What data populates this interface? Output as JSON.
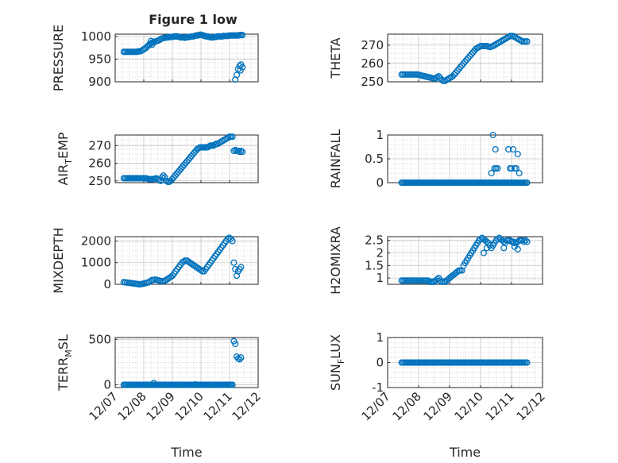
{
  "figure": {
    "title": "Figure 1 low",
    "marker_color": "#0072BD"
  },
  "chart_data": [
    {
      "type": "scatter",
      "name": "pressure",
      "title": "Figure 1 low",
      "ylabel": "PRESSURE",
      "xlabel": "",
      "ylim": [
        900,
        1005
      ],
      "yticks": [
        900,
        950,
        1000
      ],
      "ytick_labels": [
        "900",
        "950",
        "1000"
      ],
      "xlim": [
        "12/07",
        "12/12"
      ],
      "x_tick_labels_shown": false,
      "grid": true,
      "x_start": 7.3,
      "x_end": 11.45,
      "y": [
        966,
        966,
        966,
        966,
        966,
        966,
        966,
        966,
        966,
        966,
        967,
        967,
        968,
        970,
        972,
        974,
        977,
        980,
        982,
        985,
        987,
        988,
        989,
        990,
        991,
        993,
        995,
        996,
        997,
        997,
        998,
        998,
        999,
        999,
        999,
        1000,
        1000,
        1000,
        999,
        998,
        998,
        998,
        997,
        998,
        998,
        999,
        999,
        1000,
        1000,
        1001,
        1002,
        1002,
        1003,
        1004,
        1003,
        1002,
        1001,
        1000,
        1000,
        999,
        998,
        998,
        998,
        999,
        999,
        1000,
        1000,
        1000,
        1000,
        1001,
        1001,
        1001,
        1001,
        1002,
        1002,
        1002,
        1002,
        1002,
        1002,
        1002,
        1003,
        1003,
        1003
      ],
      "extra": [
        [
          8.2,
          983
        ],
        [
          8.25,
          990
        ],
        [
          8.3,
          982
        ],
        [
          11.2,
          905
        ],
        [
          11.25,
          915
        ],
        [
          11.3,
          928
        ],
        [
          11.35,
          935
        ],
        [
          11.4,
          938
        ],
        [
          11.45,
          932
        ],
        [
          11.38,
          925
        ]
      ]
    },
    {
      "type": "scatter",
      "name": "theta",
      "ylabel": "THETA",
      "xlabel": "",
      "ylim": [
        250,
        276
      ],
      "yticks": [
        250,
        260,
        270
      ],
      "ytick_labels": [
        "250",
        "260",
        "270"
      ],
      "xlim": [
        "12/07",
        "12/12"
      ],
      "x_tick_labels_shown": false,
      "grid": true,
      "x_start": 7.45,
      "x_end": 11.5,
      "y": [
        254,
        254,
        254,
        254,
        254,
        254,
        254,
        254,
        254,
        254,
        254,
        253.8,
        253.6,
        253.4,
        253.2,
        253,
        252.8,
        252.6,
        252.4,
        252.2,
        252,
        251.8,
        252,
        252.5,
        253,
        252,
        251,
        250.5,
        250.5,
        251,
        251.5,
        252,
        252.5,
        253,
        254,
        255,
        256,
        257,
        258,
        259,
        260,
        261,
        262,
        263,
        264,
        265,
        266,
        267,
        268,
        268.5,
        269,
        269.5,
        269.5,
        269.5,
        269.5,
        269.5,
        269.2,
        269,
        269.2,
        269.5,
        270,
        270.5,
        271,
        271.5,
        272,
        272.5,
        273,
        273.5,
        274,
        274.5,
        275,
        275,
        275,
        274.5,
        274,
        273.5,
        273,
        272.5,
        272,
        272,
        272,
        272
      ]
    },
    {
      "type": "scatter",
      "name": "air_temp",
      "ylabel": "AIR_TEMP",
      "ylabel_main": "AIR",
      "ylabel_sub": "T",
      "ylabel_rest": "EMP",
      "xlabel": "",
      "ylim": [
        249,
        276
      ],
      "yticks": [
        250,
        260,
        270
      ],
      "ytick_labels": [
        "250",
        "260",
        "270"
      ],
      "xlim": [
        "12/07",
        "12/12"
      ],
      "x_tick_labels_shown": false,
      "grid": true,
      "x_start": 7.3,
      "x_end": 11.1,
      "y": [
        251.5,
        251.5,
        251.5,
        251.5,
        251.5,
        251.5,
        251.5,
        251.5,
        251.5,
        251.5,
        251.5,
        251.5,
        251.5,
        251.5,
        251.5,
        251.5,
        251.3,
        251,
        251,
        251,
        251,
        251.2,
        251.5,
        251,
        250.5,
        250,
        252,
        253,
        252,
        250,
        249.5,
        249.5,
        250,
        251,
        252,
        253,
        254,
        255,
        256,
        257,
        258,
        259,
        260,
        261,
        262,
        263,
        264,
        265,
        266,
        267,
        268,
        268.5,
        269,
        269,
        269,
        269,
        269,
        269,
        269.5,
        270,
        270,
        270,
        270.5,
        271,
        271,
        271.5,
        272,
        272.5,
        273,
        273.5,
        274,
        274.5,
        275,
        275,
        275
      ],
      "extra": [
        [
          11.15,
          267
        ],
        [
          11.2,
          267.5
        ],
        [
          11.25,
          267
        ],
        [
          11.3,
          267
        ],
        [
          11.35,
          266.5
        ],
        [
          11.4,
          267
        ],
        [
          11.45,
          266.5
        ]
      ]
    },
    {
      "type": "scatter",
      "name": "rainfall",
      "ylabel": "RAINFALL",
      "xlabel": "",
      "ylim": [
        0,
        1
      ],
      "yticks": [
        0,
        0.5,
        1
      ],
      "ytick_labels": [
        "0",
        "0.5",
        "1"
      ],
      "xlim": [
        "12/07",
        "12/12"
      ],
      "x_tick_labels_shown": false,
      "grid": true,
      "x_start": 7.45,
      "x_end": 11.5,
      "baseline_points": 90,
      "extra": [
        [
          10.35,
          0.2
        ],
        [
          10.4,
          1.0
        ],
        [
          10.45,
          0.3
        ],
        [
          10.5,
          0.3
        ],
        [
          10.55,
          0.3
        ],
        [
          10.48,
          0.7
        ],
        [
          10.9,
          0.7
        ],
        [
          10.95,
          0.3
        ],
        [
          11.0,
          0.3
        ],
        [
          11.05,
          0.7
        ],
        [
          11.1,
          0.3
        ],
        [
          11.15,
          0.3
        ],
        [
          11.2,
          0.6
        ],
        [
          11.25,
          0.2
        ]
      ]
    },
    {
      "type": "scatter",
      "name": "mixdepth",
      "ylabel": "MIXDEPTH",
      "xlabel": "",
      "ylim": [
        0,
        2200
      ],
      "yticks": [
        0,
        1000,
        2000
      ],
      "ytick_labels": [
        "0",
        "1000",
        "2000"
      ],
      "xlim": [
        "12/07",
        "12/12"
      ],
      "x_tick_labels_shown": false,
      "grid": true,
      "x_start": 7.3,
      "x_end": 11.1,
      "y": [
        100,
        90,
        80,
        70,
        60,
        50,
        40,
        30,
        20,
        10,
        0,
        10,
        20,
        40,
        60,
        80,
        100,
        150,
        200,
        200,
        220,
        200,
        180,
        160,
        150,
        140,
        160,
        200,
        250,
        300,
        350,
        400,
        500,
        600,
        700,
        800,
        900,
        1000,
        1050,
        1100,
        1100,
        1050,
        1000,
        950,
        900,
        850,
        800,
        750,
        700,
        650,
        600,
        600,
        700,
        800,
        900,
        1000,
        1100,
        1200,
        1300,
        1400,
        1500,
        1600,
        1700,
        1800,
        1900,
        2000,
        2100,
        2150,
        2100,
        2000
      ],
      "extra": [
        [
          11.15,
          1000
        ],
        [
          11.2,
          700
        ],
        [
          11.25,
          400
        ],
        [
          11.3,
          600
        ],
        [
          11.35,
          700
        ],
        [
          11.4,
          800
        ]
      ]
    },
    {
      "type": "scatter",
      "name": "h2omixra",
      "ylabel": "H2OMIXRA",
      "xlabel": "",
      "ylim": [
        0.75,
        2.65
      ],
      "yticks": [
        1,
        1.5,
        2,
        2.5
      ],
      "ytick_labels": [
        "1",
        "1.5",
        "2",
        "2.5"
      ],
      "xlim": [
        "12/07",
        "12/12"
      ],
      "x_tick_labels_shown": false,
      "grid": true,
      "x_start": 7.45,
      "x_end": 11.5,
      "y": [
        0.9,
        0.9,
        0.9,
        0.9,
        0.9,
        0.9,
        0.9,
        0.9,
        0.9,
        0.9,
        0.9,
        0.9,
        0.9,
        0.9,
        0.9,
        0.9,
        0.9,
        0.9,
        0.85,
        0.85,
        0.85,
        0.85,
        0.9,
        0.95,
        1.0,
        0.9,
        0.85,
        0.85,
        0.85,
        0.9,
        0.95,
        1.0,
        1.05,
        1.1,
        1.15,
        1.2,
        1.25,
        1.3,
        1.3,
        1.3,
        1.5,
        1.6,
        1.7,
        1.8,
        1.9,
        2.0,
        2.1,
        2.2,
        2.3,
        2.4,
        2.5,
        2.55,
        2.6,
        2.55,
        2.5,
        2.45,
        2.4,
        2.3,
        2.2,
        2.3,
        2.4,
        2.5,
        2.55,
        2.6,
        2.55,
        2.5,
        2.45,
        2.4,
        2.5,
        2.5,
        2.5,
        2.45,
        2.45,
        2.4,
        2.4,
        2.45,
        2.5,
        2.5,
        2.5,
        2.45,
        2.5,
        2.45
      ],
      "extra": [
        [
          10.1,
          2.0
        ],
        [
          10.2,
          2.2
        ],
        [
          10.3,
          2.3
        ],
        [
          10.75,
          2.2
        ],
        [
          11.1,
          2.25
        ],
        [
          11.2,
          2.15
        ]
      ]
    },
    {
      "type": "scatter",
      "name": "terr_msl",
      "ylabel": "TERR_MSL",
      "ylabel_main": "TERR",
      "ylabel_sub": "M",
      "ylabel_rest": "SL",
      "xlabel": "Time",
      "ylim": [
        -30,
        520
      ],
      "yticks": [
        0,
        500
      ],
      "ytick_labels": [
        "0",
        "500"
      ],
      "xlim": [
        "12/07",
        "12/12"
      ],
      "xtick_labels": [
        "12/07",
        "12/08",
        "12/09",
        "12/10",
        "12/11",
        "12/12"
      ],
      "x_tick_labels_shown": true,
      "grid": true,
      "x_start": 7.3,
      "x_end": 11.1,
      "baseline_points": 90,
      "extra": [
        [
          8.35,
          20
        ],
        [
          9.8,
          5
        ],
        [
          11.15,
          480
        ],
        [
          11.2,
          450
        ],
        [
          11.25,
          310
        ],
        [
          11.3,
          290
        ],
        [
          11.35,
          280
        ],
        [
          11.4,
          300
        ]
      ]
    },
    {
      "type": "scatter",
      "name": "sun_flux",
      "ylabel": "SUN_FLUX",
      "ylabel_main": "SUN",
      "ylabel_sub": "F",
      "ylabel_rest": "LUX",
      "xlabel": "Time",
      "ylim": [
        -1,
        1
      ],
      "yticks": [
        -1,
        0,
        1
      ],
      "ytick_labels": [
        "-1",
        "0",
        "1"
      ],
      "xlim": [
        "12/07",
        "12/12"
      ],
      "xtick_labels": [
        "12/07",
        "12/08",
        "12/09",
        "12/10",
        "12/11",
        "12/12"
      ],
      "x_tick_labels_shown": true,
      "grid": true,
      "x_start": 7.45,
      "x_end": 11.5,
      "baseline_points": 90
    }
  ]
}
